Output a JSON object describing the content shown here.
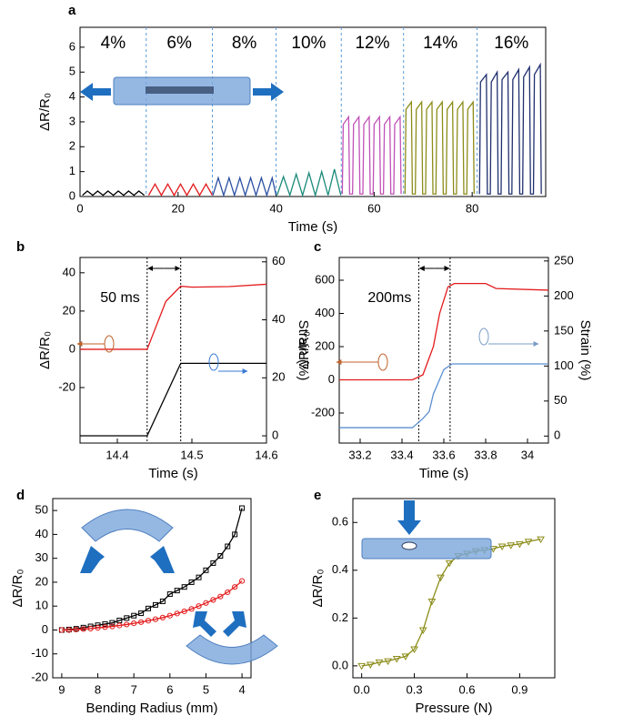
{
  "chart_data": [
    {
      "type": "line",
      "panel_label": "a",
      "xlabel": "Time (s)",
      "ylabel": "ΔR/R₀",
      "xlim": [
        0,
        95
      ],
      "ylim": [
        0,
        6.8
      ],
      "xticks": [
        0,
        20,
        40,
        60,
        80
      ],
      "yticks": [
        0,
        1,
        2,
        3,
        4,
        5,
        6
      ],
      "dividers": [
        13.5,
        27,
        40,
        53.3,
        66,
        81
      ],
      "divider_color": "#5b9bd5",
      "annotations": [
        "4%",
        "6%",
        "8%",
        "10%",
        "12%",
        "14%",
        "16%"
      ],
      "series": [
        {
          "color": "#000000",
          "x": [
            0.5,
            1.5,
            2.6,
            3.6,
            4.7,
            5.7,
            6.8,
            7.8,
            8.9,
            9.9,
            11.0,
            12.0,
            13.1
          ],
          "values": [
            0.05,
            0.22,
            0.05,
            0.22,
            0.05,
            0.22,
            0.05,
            0.22,
            0.05,
            0.22,
            0.05,
            0.22,
            0.05
          ]
        },
        {
          "color": "#e31a1c",
          "x": [
            14,
            15.3,
            16.6,
            17.9,
            19.2,
            20.5,
            21.8,
            23.1,
            24.4,
            25.7,
            27.0
          ],
          "values": [
            0.05,
            0.5,
            0.05,
            0.5,
            0.05,
            0.5,
            0.05,
            0.5,
            0.05,
            0.5,
            0.05
          ]
        },
        {
          "color": "#2b4fa2",
          "x": [
            27.1,
            28.2,
            29.3,
            30.4,
            31.5,
            32.6,
            33.7,
            34.8,
            35.9,
            37.0,
            38.1,
            39.2,
            40.0
          ],
          "values": [
            0.05,
            0.75,
            0.05,
            0.75,
            0.05,
            0.75,
            0.05,
            0.75,
            0.05,
            0.75,
            0.05,
            0.75,
            0.05
          ]
        },
        {
          "color": "#1b8a7a",
          "x": [
            40.2,
            41.5,
            42.8,
            44.1,
            45.4,
            46.7,
            48.0,
            49.3,
            50.6,
            51.9,
            53.2
          ],
          "values": [
            0.05,
            0.8,
            0.05,
            0.9,
            0.05,
            0.95,
            0.05,
            1.0,
            0.05,
            1.1,
            0.05
          ]
        },
        {
          "color": "#c050b8",
          "x": [
            53.5,
            53.7,
            54.8,
            55.0,
            55.6,
            55.8,
            56.9,
            57.1,
            57.7,
            57.9,
            59.0,
            59.2,
            59.8,
            60.0,
            61.1,
            61.3,
            61.9,
            62.1,
            63.2,
            63.4,
            64.0,
            64.2,
            65.3,
            65.5
          ],
          "values": [
            0.1,
            2.9,
            3.2,
            0.1,
            0.1,
            2.9,
            3.2,
            0.1,
            0.1,
            2.9,
            3.2,
            0.1,
            0.1,
            2.9,
            3.2,
            0.1,
            0.1,
            2.9,
            3.2,
            0.1,
            0.1,
            2.9,
            3.2,
            0.1
          ]
        },
        {
          "color": "#8c8c1a",
          "x": [
            66.3,
            66.5,
            67.6,
            67.8,
            68.4,
            68.6,
            69.7,
            69.9,
            70.5,
            70.7,
            71.8,
            72.0,
            72.6,
            72.8,
            73.9,
            74.1,
            74.7,
            74.9,
            76.0,
            76.2,
            76.8,
            77.0,
            78.1,
            78.3,
            78.9,
            79.1,
            80.2,
            80.4
          ],
          "values": [
            0.1,
            3.5,
            3.8,
            0.1,
            0.1,
            3.5,
            3.8,
            0.1,
            0.1,
            3.5,
            3.8,
            0.1,
            0.1,
            3.5,
            3.8,
            0.1,
            0.1,
            3.5,
            3.8,
            0.1,
            0.1,
            3.5,
            3.8,
            0.1,
            0.1,
            3.5,
            3.8,
            0.1
          ]
        },
        {
          "color": "#1f2f6e",
          "x": [
            81.5,
            81.7,
            82.9,
            83.1,
            83.7,
            83.9,
            85.1,
            85.3,
            85.9,
            86.1,
            87.3,
            87.5,
            88.1,
            88.3,
            89.5,
            89.7,
            90.3,
            90.5,
            91.7,
            91.9,
            92.5,
            92.7,
            93.9,
            94.1
          ],
          "values": [
            0.1,
            4.6,
            4.9,
            0.1,
            0.1,
            4.6,
            5.0,
            0.1,
            0.1,
            4.7,
            5.0,
            0.1,
            0.1,
            4.7,
            5.1,
            0.1,
            0.1,
            4.8,
            5.2,
            0.1,
            0.1,
            4.9,
            5.3,
            0.1
          ]
        }
      ]
    },
    {
      "type": "line",
      "panel_label": "b",
      "xlabel": "Time (s)",
      "ylabel": "ΔR/R₀",
      "y2label": "Strain (%)",
      "xlim": [
        14.35,
        14.6
      ],
      "ylim": [
        -49,
        48
      ],
      "y2lim": [
        -2.5,
        61.5
      ],
      "xticks": [
        14.4,
        14.5,
        14.6
      ],
      "yticks": [
        -20,
        0,
        20,
        40
      ],
      "y2ticks": [
        0,
        20,
        40,
        60
      ],
      "dividers": [
        14.44,
        14.485
      ],
      "divider_color": "#000000",
      "annotations": [
        "50 ms"
      ],
      "series": [
        {
          "color": "#e31a1c",
          "x": [
            14.35,
            14.44,
            14.445,
            14.465,
            14.48,
            14.485,
            14.5,
            14.55,
            14.6
          ],
          "values": [
            0,
            0,
            5,
            25,
            31,
            33,
            32.5,
            32.8,
            34
          ]
        },
        {
          "color": "#000000",
          "axis": "y2",
          "x": [
            14.35,
            14.44,
            14.485,
            14.6
          ],
          "values": [
            0,
            0,
            25,
            25
          ]
        }
      ]
    },
    {
      "type": "line",
      "panel_label": "c",
      "xlabel": "Time (s)",
      "ylabel": "ΔR/R₀",
      "y2label": "Strain (%)",
      "xlim": [
        33.1,
        34.1
      ],
      "ylim": [
        -381,
        737
      ],
      "y2lim": [
        -10,
        255
      ],
      "xticks": [
        33.2,
        33.4,
        33.6,
        33.8,
        34.0
      ],
      "yticks": [
        -200,
        0,
        200,
        400,
        600
      ],
      "y2ticks": [
        0,
        50,
        100,
        150,
        200,
        250
      ],
      "dividers": [
        33.48,
        33.63
      ],
      "divider_color": "#000000",
      "annotations": [
        "200ms"
      ],
      "series": [
        {
          "color": "#e31a1c",
          "x": [
            33.1,
            33.45,
            33.5,
            33.55,
            33.58,
            33.62,
            33.65,
            33.8,
            33.85,
            34.1
          ],
          "values": [
            0,
            0,
            30,
            200,
            400,
            560,
            580,
            580,
            550,
            540
          ]
        },
        {
          "color": "#5b8fd0",
          "axis": "y2",
          "x": [
            33.1,
            33.45,
            33.5,
            33.53,
            33.55,
            33.6,
            33.64,
            34.1
          ],
          "values": [
            12,
            12,
            25,
            35,
            60,
            95,
            103,
            103
          ]
        }
      ]
    },
    {
      "type": "line",
      "panel_label": "d",
      "xlabel": "Bending Radius (mm)",
      "ylabel": "ΔR/R₀",
      "xlim": [
        9.25,
        3.75
      ],
      "ylim": [
        -20,
        55
      ],
      "xticks": [
        9,
        8,
        7,
        6,
        5,
        4
      ],
      "yticks": [
        -20,
        -10,
        0,
        10,
        20,
        30,
        40,
        50
      ],
      "series": [
        {
          "color": "#000000",
          "marker": "square",
          "x": [
            9.0,
            8.8,
            8.6,
            8.4,
            8.2,
            8.0,
            7.8,
            7.6,
            7.4,
            7.2,
            7.0,
            6.8,
            6.6,
            6.4,
            6.2,
            6.0,
            5.8,
            5.6,
            5.4,
            5.2,
            5.0,
            4.8,
            4.6,
            4.4,
            4.2,
            4.0
          ],
          "values": [
            0,
            0.2,
            0.5,
            1,
            1.5,
            2,
            2.5,
            3,
            4,
            5,
            6,
            7,
            9,
            10.5,
            12,
            15,
            16.5,
            18,
            20,
            22,
            25,
            28,
            31,
            35,
            40,
            51
          ]
        },
        {
          "color": "#e31a1c",
          "marker": "circle",
          "x": [
            9.0,
            8.8,
            8.6,
            8.4,
            8.2,
            8.0,
            7.8,
            7.6,
            7.4,
            7.2,
            7.0,
            6.8,
            6.6,
            6.4,
            6.2,
            6.0,
            5.8,
            5.6,
            5.4,
            5.2,
            5.0,
            4.8,
            4.6,
            4.4,
            4.2,
            4.0
          ],
          "values": [
            0,
            0,
            0.2,
            0.4,
            0.6,
            0.9,
            1.2,
            1.5,
            1.9,
            2.3,
            2.8,
            3.3,
            3.9,
            4.5,
            5.2,
            6,
            6.9,
            7.8,
            8.8,
            10,
            11.3,
            12.6,
            14,
            15.8,
            18,
            20.5
          ]
        }
      ]
    },
    {
      "type": "line",
      "panel_label": "e",
      "xlabel": "Pressure (N)",
      "ylabel": "ΔR/R₀",
      "xlim": [
        -0.05,
        1.1
      ],
      "ylim": [
        -0.05,
        0.7
      ],
      "xticks": [
        {
          "value": 0,
          "label": "0.0"
        },
        0.3,
        0.6,
        0.9
      ],
      "yticks": [
        {
          "value": 0,
          "label": "0.0"
        },
        0.2,
        0.4,
        0.6
      ],
      "series": [
        {
          "color": "#8c8c1a",
          "marker": "triangle-down",
          "x": [
            0,
            0.05,
            0.1,
            0.15,
            0.2,
            0.25,
            0.3,
            0.35,
            0.4,
            0.45,
            0.5,
            0.55,
            0.6,
            0.65,
            0.7,
            0.75,
            0.8,
            0.85,
            0.9,
            0.95,
            1.02
          ],
          "values": [
            0,
            0.005,
            0.015,
            0.02,
            0.03,
            0.04,
            0.07,
            0.15,
            0.27,
            0.37,
            0.43,
            0.46,
            0.47,
            0.48,
            0.485,
            0.49,
            0.5,
            0.505,
            0.51,
            0.52,
            0.53
          ]
        }
      ]
    }
  ]
}
